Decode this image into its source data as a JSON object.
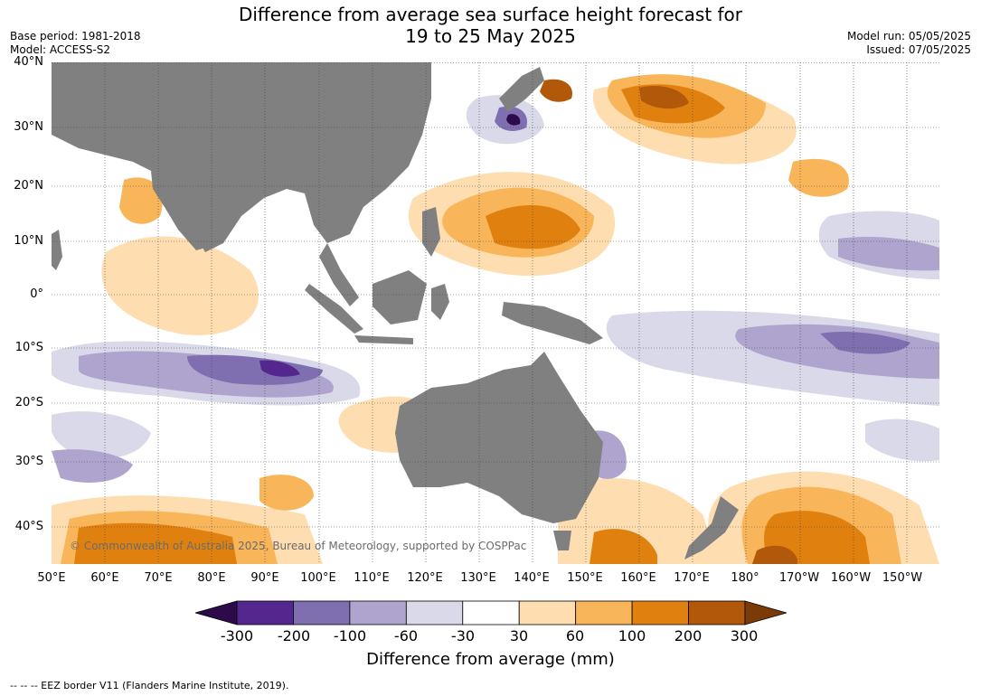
{
  "title_line1": "Difference from average sea surface height forecast for",
  "title_line2": "19 to 25 May 2025",
  "base_period": "Base period: 1981-2018",
  "model": "Model: ACCESS-S2",
  "model_run": "Model run: 05/05/2025",
  "issued": "Issued: 07/05/2025",
  "copyright": "© Commonwealth of Australia 2025, Bureau of Meteorology, supported by COSPPac",
  "lat_labels": [
    "40°N",
    "30°N",
    "20°N",
    "10°N",
    "0°",
    "10°S",
    "20°S",
    "30°S",
    "40°S"
  ],
  "lon_labels": [
    "50°E",
    "60°E",
    "70°E",
    "80°E",
    "90°E",
    "100°E",
    "110°E",
    "120°E",
    "130°E",
    "140°E",
    "150°E",
    "160°E",
    "170°E",
    "180°",
    "170°W",
    "160°W",
    "150°W"
  ],
  "colorbar": {
    "ticks": [
      "-300",
      "-200",
      "-100",
      "-60",
      "-30",
      "30",
      "60",
      "100",
      "200",
      "300"
    ],
    "colors": [
      "#2d0a4a",
      "#54278f",
      "#7f6fb0",
      "#aea4cd",
      "#d9d9ea",
      "#ffffff",
      "#fedeb0",
      "#f9b55a",
      "#e0810f",
      "#b1580a",
      "#7a3b08"
    ],
    "label": "Difference from average (mm)"
  },
  "land_color": "#808080",
  "footer": "--  --  -- EEZ border V11 (Flanders Marine Institute, 2019)."
}
